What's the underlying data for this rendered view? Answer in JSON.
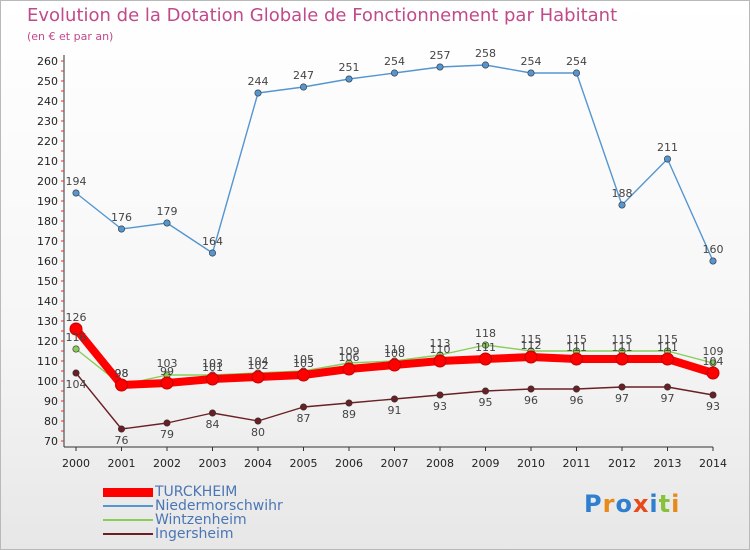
{
  "title": "Evolution de la Dotation Globale de Fonctionnement par Habitant",
  "subtitle": "(en € et par an)",
  "logo": "Proxiti",
  "chart_data": {
    "type": "line",
    "x": [
      "2000",
      "2001",
      "2002",
      "2003",
      "2004",
      "2005",
      "2006",
      "2007",
      "2008",
      "2009",
      "2010",
      "2011",
      "2012",
      "2013",
      "2014"
    ],
    "ylim": [
      70,
      260
    ],
    "yticks": [
      70,
      80,
      90,
      100,
      110,
      120,
      130,
      140,
      150,
      160,
      170,
      180,
      190,
      200,
      210,
      220,
      230,
      240,
      250,
      260
    ],
    "grid": false,
    "legend_position": "bottom-left",
    "series": [
      {
        "name": "TURCKHEIM",
        "color": "#ff0000",
        "values": [
          126,
          98,
          99,
          101,
          102,
          103,
          106,
          108,
          110,
          111,
          112,
          111,
          111,
          111,
          104
        ],
        "labels": [
          "126",
          "98",
          "99",
          "101",
          "102",
          "103",
          "106",
          "108",
          "110",
          "111",
          "112",
          "111",
          "111",
          "111",
          "104"
        ]
      },
      {
        "name": "Niedermorschwihr",
        "color": "#5596d0",
        "values": [
          194,
          176,
          179,
          164,
          244,
          247,
          251,
          254,
          257,
          258,
          254,
          254,
          188,
          211,
          160
        ],
        "labels": [
          "194",
          "176",
          "179",
          "164",
          "244",
          "247",
          "251",
          "254",
          "257",
          "258",
          "254",
          "254",
          "188",
          "211",
          "160"
        ]
      },
      {
        "name": "Wintzenheim",
        "color": "#88cc5a",
        "values": [
          116,
          98,
          103,
          103,
          104,
          105,
          109,
          110,
          113,
          118,
          115,
          115,
          115,
          115,
          109
        ],
        "labels": [
          "116",
          "98",
          "103",
          "103",
          "104",
          "105",
          "109",
          "110",
          "113",
          "118",
          "115",
          "115",
          "115",
          "115",
          "109"
        ]
      },
      {
        "name": "Ingersheim",
        "color": "#6a1f24",
        "values": [
          104,
          76,
          79,
          84,
          80,
          87,
          89,
          91,
          93,
          95,
          96,
          96,
          97,
          97,
          93
        ],
        "labels": [
          "104",
          "76",
          "79",
          "84",
          "80",
          "87",
          "89",
          "91",
          "93",
          "95",
          "96",
          "96",
          "97",
          "97",
          "93"
        ]
      }
    ]
  }
}
